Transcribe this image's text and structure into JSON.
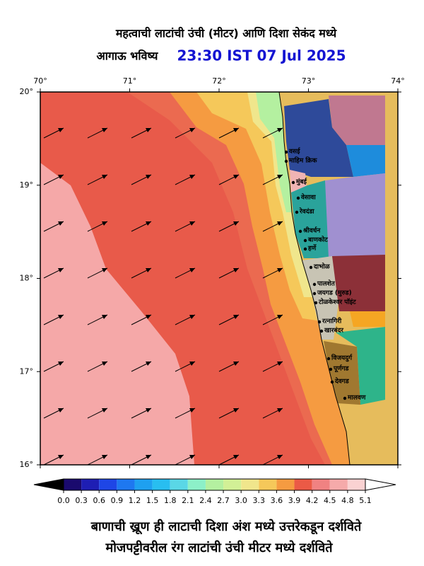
{
  "header": {
    "title": "महत्वाची लाटांची उंची (मीटर) आणि दिशा सेकंद मध्ये",
    "subtitle": "आगाऊ भविष्य",
    "datetime": "23:30 IST 07 Jul 2025"
  },
  "map": {
    "xlim": [
      70,
      74
    ],
    "ylim": [
      16,
      20
    ],
    "xticks": [
      {
        "value": 70,
        "label": "70°"
      },
      {
        "value": 71,
        "label": "71°"
      },
      {
        "value": 72,
        "label": "72°"
      },
      {
        "value": 73,
        "label": "73°"
      },
      {
        "value": 74,
        "label": "74°"
      }
    ],
    "yticks": [
      {
        "value": 20,
        "label": "20°"
      },
      {
        "value": 19,
        "label": "19°"
      },
      {
        "value": 18,
        "label": "18°"
      },
      {
        "value": 17,
        "label": "17°"
      },
      {
        "value": 16,
        "label": "16°"
      }
    ],
    "places": [
      "वसई",
      "माहिम क्रिक",
      "मुंबई",
      "वेसावा",
      "रेवदंडा",
      "श्रीवर्धन",
      "बाणकोट",
      "हर्णे",
      "दाभोळ",
      "पालशेत",
      "जयगड (मुरुड)",
      "टोळकेश्वर पॉइंट",
      "रत्नागिरी",
      "खारबंदर",
      "विजयदुर्ग",
      "पूर्णगड",
      "देवगड",
      "मालवण"
    ]
  },
  "colorbar": {
    "ticks": [
      {
        "value": 0,
        "label": "0.0"
      },
      0.3,
      0.6,
      0.9,
      1.2,
      1.5,
      1.8,
      2.1,
      2.4,
      2.7,
      {
        "value": 3,
        "label": "3.0"
      },
      3.3,
      3.6,
      3.9,
      4.2,
      4.5,
      4.8,
      5.1
    ],
    "colors": [
      "#1a0a6e",
      "#1e1eb4",
      "#1e46e6",
      "#1e78f0",
      "#1ea0f0",
      "#28bef0",
      "#5ad7e6",
      "#8cf0c8",
      "#b4f0a0",
      "#d2f096",
      "#f0e68c",
      "#f5c85a",
      "#f59b41",
      "#eb5a46",
      "#f08282",
      "#f5aaaa",
      "#fad2d2"
    ]
  },
  "footer": {
    "line1": "बाणाची ख्रूण ही लाटाची दिशा अंश मध्ये उत्तरेकडून दर्शविते",
    "line2": "मोजपट्टीवरील रंग लाटांची उंची मीटर मध्ये दर्शविते"
  }
}
